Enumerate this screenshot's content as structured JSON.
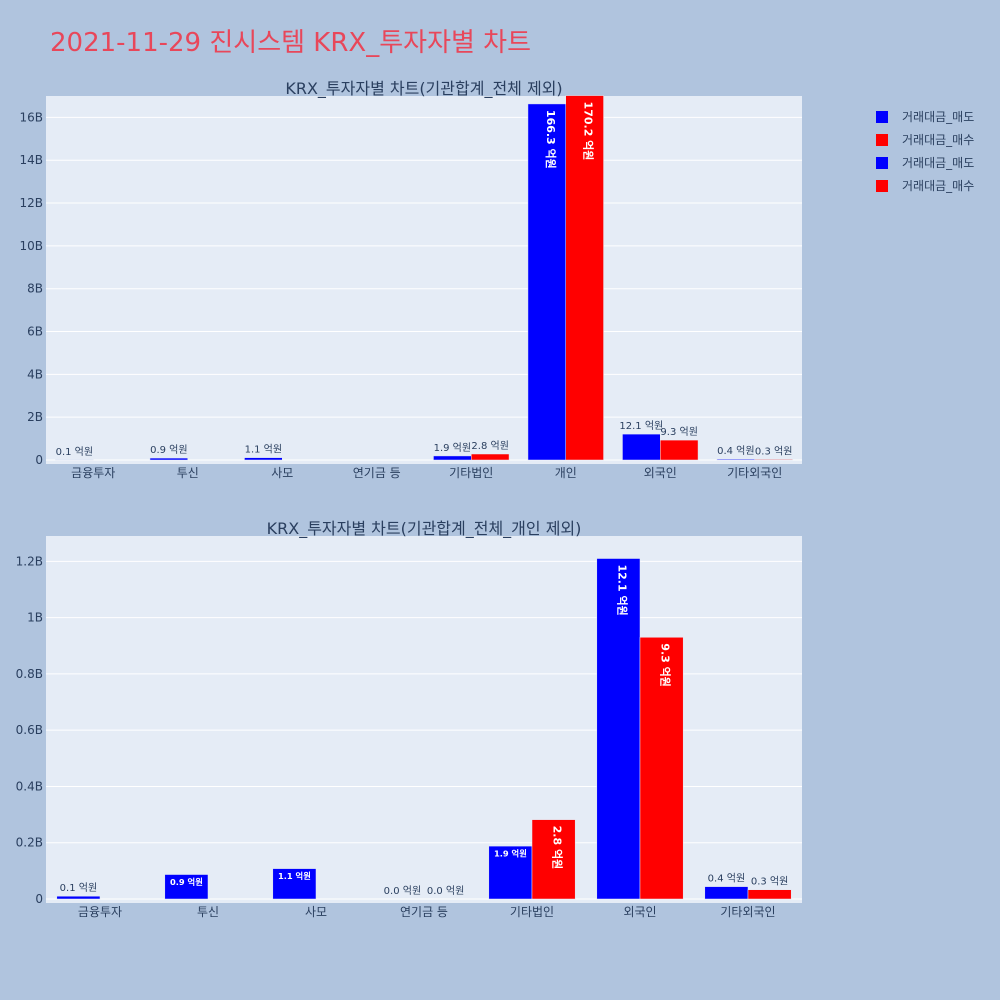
{
  "title": "2021-11-29 진시스템 KRX_투자자별 차트",
  "legend": [
    {
      "label": "거래대금_매도",
      "color": "#0000ff"
    },
    {
      "label": "거래대금_매수",
      "color": "#ff0000"
    },
    {
      "label": "거래대금_매도",
      "color": "#0000ff"
    },
    {
      "label": "거래대금_매수",
      "color": "#ff0000"
    }
  ],
  "chart_data": [
    {
      "type": "bar",
      "title": "KRX_투자자별 차트(기관합계_전체 제외)",
      "categories": [
        "금융투자",
        "투신",
        "사모",
        "연기금 등",
        "기타법인",
        "개인",
        "외국인",
        "기타외국인"
      ],
      "ylim": [
        0,
        17000000000
      ],
      "ytick_values": [
        0,
        2000000000,
        4000000000,
        6000000000,
        8000000000,
        10000000000,
        12000000000,
        14000000000,
        16000000000
      ],
      "ytick_labels": [
        "0",
        "2B",
        "4B",
        "6B",
        "8B",
        "10B",
        "12B",
        "14B",
        "16B"
      ],
      "series": [
        {
          "name": "거래대금_매도",
          "color": "#0000ff",
          "values": [
            10000000,
            90000000,
            110000000,
            0,
            190000000,
            16630000000,
            1210000000,
            40000000
          ],
          "labels": [
            "0.1 억원",
            "0.9 억원",
            "1.1 억원",
            "",
            "1.9 억원",
            "166.3 억원",
            "12.1 억원",
            "0.4 억원"
          ]
        },
        {
          "name": "거래대금_매수",
          "color": "#ff0000",
          "values": [
            0,
            0,
            0,
            0,
            280000000,
            17020000000,
            930000000,
            30000000
          ],
          "labels": [
            "",
            "",
            "",
            "",
            "2.8 억원",
            "170.2 억원",
            "9.3 억원",
            "0.3 억원"
          ]
        }
      ]
    },
    {
      "type": "bar",
      "title": "KRX_투자자별 차트(기관합계_전체_개인 제외)",
      "categories": [
        "금융투자",
        "투신",
        "사모",
        "연기금 등",
        "기타법인",
        "외국인",
        "기타외국인"
      ],
      "ylim": [
        0,
        1290000000
      ],
      "ytick_values": [
        0,
        200000000,
        400000000,
        600000000,
        800000000,
        1000000000,
        1200000000
      ],
      "ytick_labels": [
        "0",
        "0.2B",
        "0.4B",
        "0.6B",
        "0.8B",
        "1B",
        "1.2B"
      ],
      "series": [
        {
          "name": "거래대금_매도",
          "color": "#0000ff",
          "values": [
            10000000,
            87000000,
            108000000,
            0,
            188000000,
            1210000000,
            44000000
          ],
          "labels": [
            "0.1 억원",
            "0.9 억원",
            "1.1 억원",
            "0.0 억원",
            "1.9 억원",
            "12.1 억원",
            "0.4 억원"
          ]
        },
        {
          "name": "거래대금_매수",
          "color": "#ff0000",
          "values": [
            0,
            0,
            0,
            0,
            282000000,
            930000000,
            33000000
          ],
          "labels": [
            "",
            "",
            "",
            "0.0 억원",
            "2.8 억원",
            "9.3 억원",
            "0.3 억원"
          ]
        }
      ]
    }
  ]
}
